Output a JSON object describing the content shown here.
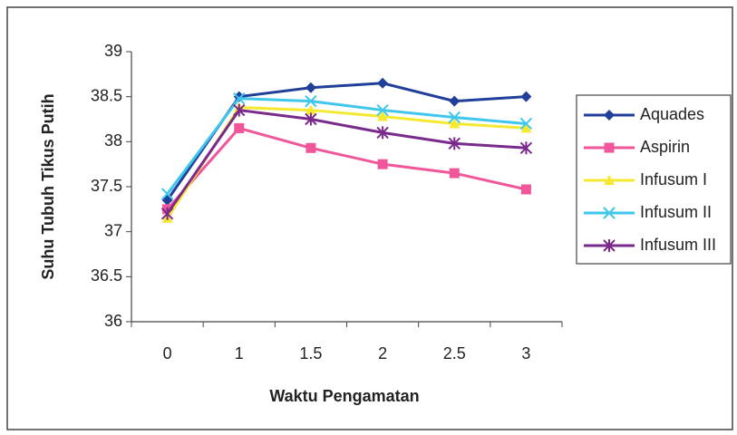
{
  "chart_data": {
    "type": "line",
    "xlabel": "Waktu Pengamatan",
    "ylabel": "Suhu Tubuh Tikus Putih",
    "categories": [
      "0",
      "1",
      "1.5",
      "2",
      "2.5",
      "3"
    ],
    "series": [
      {
        "name": "Aquades",
        "color": "#1f3f9a",
        "marker": "diamond",
        "values": [
          37.35,
          38.5,
          38.6,
          38.65,
          38.45,
          38.5
        ]
      },
      {
        "name": "Aspirin",
        "color": "#f0569a",
        "marker": "square",
        "values": [
          37.25,
          38.15,
          37.93,
          37.75,
          37.65,
          37.47
        ]
      },
      {
        "name": "Infusum I",
        "color": "#f5e830",
        "marker": "triangle",
        "values": [
          37.15,
          38.38,
          38.35,
          38.28,
          38.2,
          38.15
        ]
      },
      {
        "name": "Infusum II",
        "color": "#3fc6ec",
        "marker": "x",
        "values": [
          37.42,
          38.48,
          38.45,
          38.35,
          38.27,
          38.2
        ]
      },
      {
        "name": "Infusum III",
        "color": "#7a2a8c",
        "marker": "asterisk",
        "values": [
          37.2,
          38.35,
          38.25,
          38.1,
          37.98,
          37.93
        ]
      }
    ],
    "ylim": [
      36,
      39
    ],
    "yticks": [
      36,
      36.5,
      37,
      37.5,
      38,
      38.5,
      39
    ],
    "legend": "right"
  }
}
